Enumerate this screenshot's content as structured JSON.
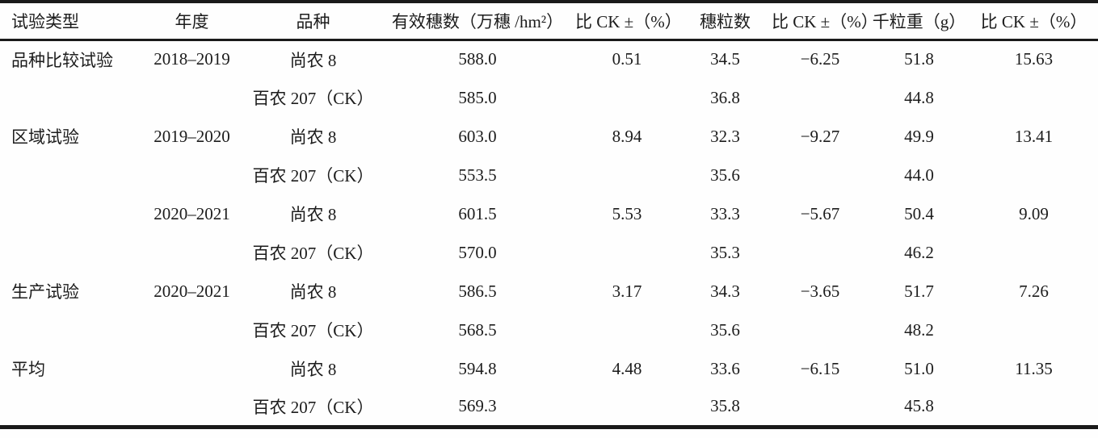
{
  "table": {
    "name": "yield-components-trial-table",
    "columns": [
      {
        "key": "trial-type",
        "label": "试验类型"
      },
      {
        "key": "year",
        "label": "年度"
      },
      {
        "key": "variety",
        "label": "品种"
      },
      {
        "key": "effective-panicles",
        "label": "有效穗数（万穗 /hm²）"
      },
      {
        "key": "vs-ck-panicles",
        "label": "比 CK ±（%）"
      },
      {
        "key": "grains-per-panicle",
        "label": "穗粒数"
      },
      {
        "key": "vs-ck-grains",
        "label": "比 CK ±（%）"
      },
      {
        "key": "thousand-grain-weight",
        "label": "千粒重（g）"
      },
      {
        "key": "vs-ck-weight",
        "label": "比 CK ±（%）"
      }
    ],
    "rows": [
      [
        "品种比较试验",
        "2018–2019",
        "尚农 8",
        "588.0",
        "0.51",
        "34.5",
        "−6.25",
        "51.8",
        "15.63"
      ],
      [
        "",
        "",
        "百农 207（CK）",
        "585.0",
        "",
        "36.8",
        "",
        "44.8",
        ""
      ],
      [
        "区域试验",
        "2019–2020",
        "尚农 8",
        "603.0",
        "8.94",
        "32.3",
        "−9.27",
        "49.9",
        "13.41"
      ],
      [
        "",
        "",
        "百农 207（CK）",
        "553.5",
        "",
        "35.6",
        "",
        "44.0",
        ""
      ],
      [
        "",
        "2020–2021",
        "尚农 8",
        "601.5",
        "5.53",
        "33.3",
        "−5.67",
        "50.4",
        "9.09"
      ],
      [
        "",
        "",
        "百农 207（CK）",
        "570.0",
        "",
        "35.3",
        "",
        "46.2",
        ""
      ],
      [
        "生产试验",
        "2020–2021",
        "尚农 8",
        "586.5",
        "3.17",
        "34.3",
        "−3.65",
        "51.7",
        "7.26"
      ],
      [
        "",
        "",
        "百农 207（CK）",
        "568.5",
        "",
        "35.6",
        "",
        "48.2",
        ""
      ],
      [
        "平均",
        "",
        "尚农 8",
        "594.8",
        "4.48",
        "33.6",
        "−6.15",
        "51.0",
        "11.35"
      ],
      [
        "",
        "",
        "百农 207（CK）",
        "569.3",
        "",
        "35.8",
        "",
        "45.8",
        ""
      ]
    ]
  },
  "colors": {
    "rule": "#1a1a1a",
    "text": "#1c1c1c",
    "background": "#fefefe"
  }
}
